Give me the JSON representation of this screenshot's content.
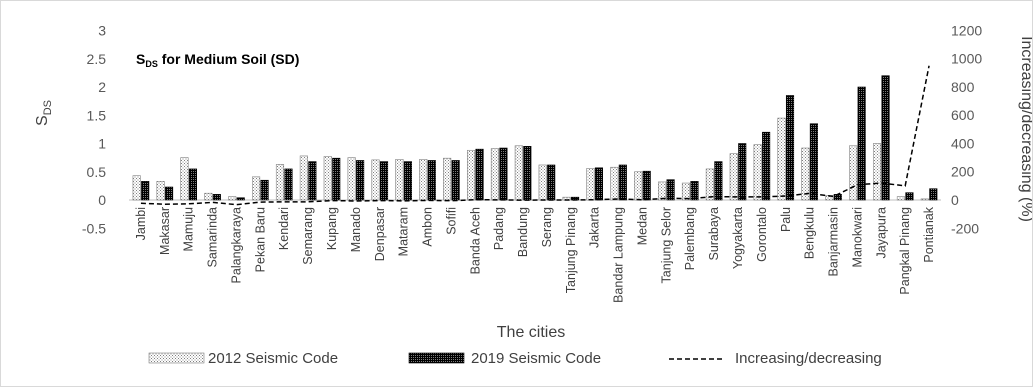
{
  "chart_data": {
    "type": "bar",
    "title_main": "S",
    "title_sub": "DS",
    "title_rest": " for Medium Soil (SD)",
    "xlabel": "The cities",
    "ylabel_main": "S",
    "ylabel_sub": "DS",
    "y2label": "Increasing/decreasing (%)",
    "ylim": [
      -0.5,
      3
    ],
    "y_ticks": [
      "-0.5",
      "0",
      "0.5",
      "1",
      "1.5",
      "2",
      "2.5",
      "3"
    ],
    "y2lim": [
      -200,
      1200
    ],
    "y2_ticks": [
      "-200",
      "0",
      "200",
      "400",
      "600",
      "800",
      "1000",
      "1200"
    ],
    "categories": [
      "Jambi",
      "Makasar",
      "Mamuju",
      "Samarinda",
      "Palangkaraya",
      "Pekan Baru",
      "Kendari",
      "Semarang",
      "Kupang",
      "Manado",
      "Denpasar",
      "Mataram",
      "Ambon",
      "Sofifi",
      "Banda Aceh",
      "Padang",
      "Bandung",
      "Serang",
      "Tanjung Pinang",
      "Jakarta",
      "Bandar Lampung",
      "Medan",
      "Tanjung Selor",
      "Palembang",
      "Surabaya",
      "Yogyakarta",
      "Gorontalo",
      "Palu",
      "Bengkulu",
      "Banjarmasin",
      "Manokwari",
      "Jayapura",
      "Pangkal Pinang",
      "Pontianak"
    ],
    "series": [
      {
        "name": "2012 Seismic Code",
        "pattern": "dots",
        "values": [
          0.43,
          0.33,
          0.75,
          0.12,
          0.06,
          0.41,
          0.63,
          0.78,
          0.77,
          0.75,
          0.71,
          0.72,
          0.72,
          0.74,
          0.88,
          0.91,
          0.96,
          0.62,
          0.05,
          0.56,
          0.58,
          0.5,
          0.32,
          0.3,
          0.55,
          0.82,
          0.98,
          1.45,
          0.92,
          0.08,
          0.96,
          1.0,
          0.06,
          0.02
        ]
      },
      {
        "name": "2019 Seismic Code",
        "pattern": "solid",
        "values": [
          0.33,
          0.23,
          0.55,
          0.1,
          0.04,
          0.35,
          0.55,
          0.68,
          0.74,
          0.7,
          0.68,
          0.68,
          0.7,
          0.7,
          0.9,
          0.92,
          0.95,
          0.62,
          0.05,
          0.57,
          0.62,
          0.51,
          0.36,
          0.33,
          0.68,
          1.0,
          1.2,
          1.85,
          1.35,
          0.1,
          2.0,
          2.2,
          0.13,
          0.2
        ]
      }
    ],
    "line": {
      "name": "Increasing/decreasing",
      "axis": "right",
      "style": "dashed",
      "values": [
        -23,
        -30,
        -27,
        -17,
        -33,
        -15,
        -13,
        -13,
        -4,
        -7,
        -4,
        -6,
        -3,
        -5,
        2,
        1,
        -1,
        0,
        0,
        2,
        7,
        2,
        12,
        10,
        24,
        22,
        22,
        28,
        47,
        25,
        108,
        120,
        100,
        950
      ]
    },
    "legend": {
      "position": "bottom"
    },
    "grid": false
  }
}
